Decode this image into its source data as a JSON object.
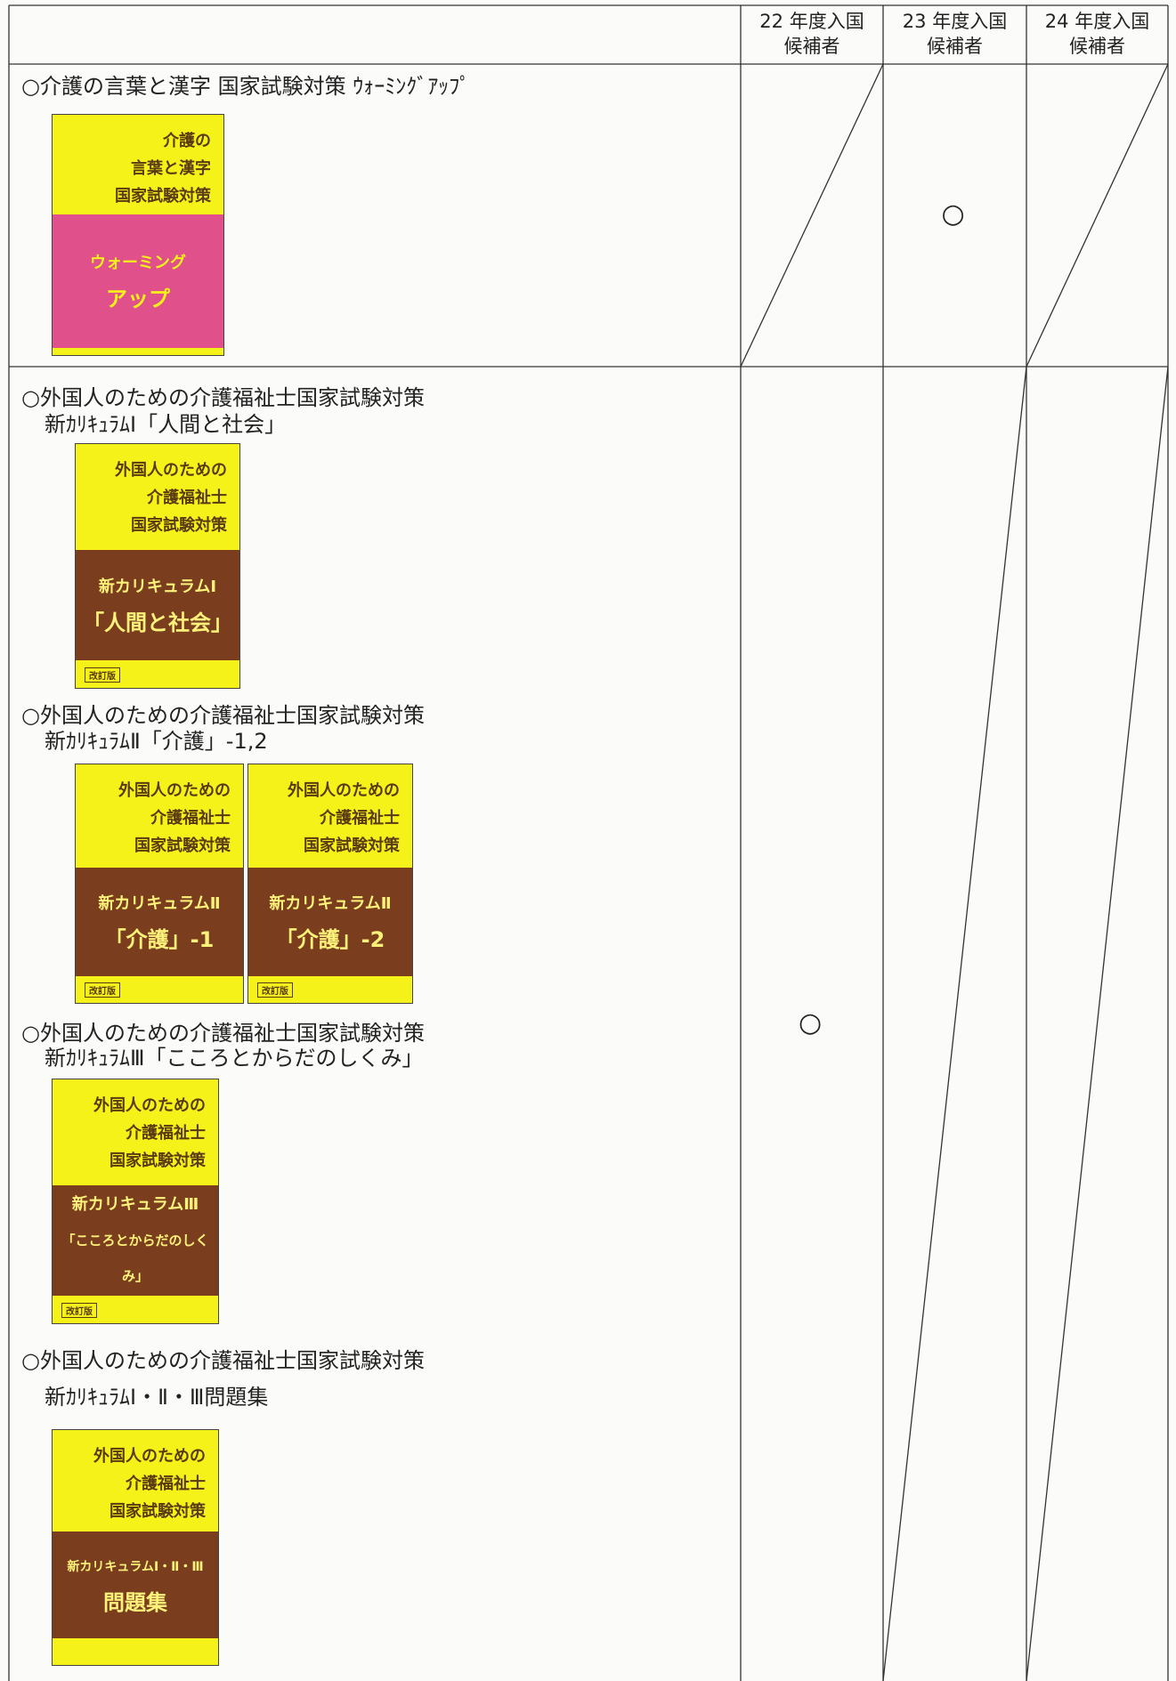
{
  "header": {
    "columns": [
      {
        "line1": "22 年度入国",
        "line2": "候補者"
      },
      {
        "line1": "23 年度入国",
        "line2": "候補者"
      },
      {
        "line1": "24 年度入国",
        "line2": "候補者"
      }
    ]
  },
  "rows": [
    {
      "items": [
        {
          "title": "○介護の言葉と漢字 国家試験対策 ｳｫｰﾐﾝｸﾞｱｯﾌﾟ",
          "covers": [
            {
              "top": [
                "介護の",
                "言葉と漢字",
                "国家試験対策"
              ],
              "band": [
                "ウォーミング",
                "アップ"
              ]
            }
          ]
        }
      ],
      "marks": [
        null,
        "○",
        null
      ]
    },
    {
      "items": [
        {
          "title": "○外国人のための介護福祉士国家試験対策",
          "subtitle": "新ｶﾘｷｭﾗﾑⅠ「人間と社会」",
          "covers": [
            {
              "top": [
                "外国人のための",
                "介護福祉士",
                "国家試験対策"
              ],
              "band": [
                "新カリキュラムⅠ",
                "「人間と社会」"
              ],
              "badge": "改訂版"
            }
          ]
        },
        {
          "title": "○外国人のための介護福祉士国家試験対策",
          "subtitle": "新ｶﾘｷｭﾗﾑⅡ「介護」-1,2",
          "covers": [
            {
              "top": [
                "外国人のための",
                "介護福祉士",
                "国家試験対策"
              ],
              "band": [
                "新カリキュラムⅡ",
                "「介護」-1"
              ],
              "badge": "改訂版"
            },
            {
              "top": [
                "外国人のための",
                "介護福祉士",
                "国家試験対策"
              ],
              "band": [
                "新カリキュラムⅡ",
                "「介護」-2"
              ],
              "badge": "改訂版"
            }
          ]
        },
        {
          "title": "○外国人のための介護福祉士国家試験対策",
          "subtitle": "新ｶﾘｷｭﾗﾑⅢ「こころとからだのしくみ」",
          "covers": [
            {
              "top": [
                "外国人のための",
                "介護福祉士",
                "国家試験対策"
              ],
              "band": [
                "新カリキュラムⅢ",
                "「こころとからだのしくみ」"
              ],
              "badge": "改訂版"
            }
          ]
        },
        {
          "title": "○外国人のための介護福祉士国家試験対策",
          "subtitle": "新ｶﾘｷｭﾗﾑⅠ・Ⅱ・Ⅲ問題集",
          "covers": [
            {
              "top": [
                "外国人のための",
                "介護福祉士",
                "国家試験対策"
              ],
              "band": [
                "新カリキュラムⅠ・Ⅱ・Ⅲ",
                "問題集"
              ]
            }
          ]
        }
      ],
      "marks": [
        "○",
        null,
        null
      ]
    }
  ]
}
